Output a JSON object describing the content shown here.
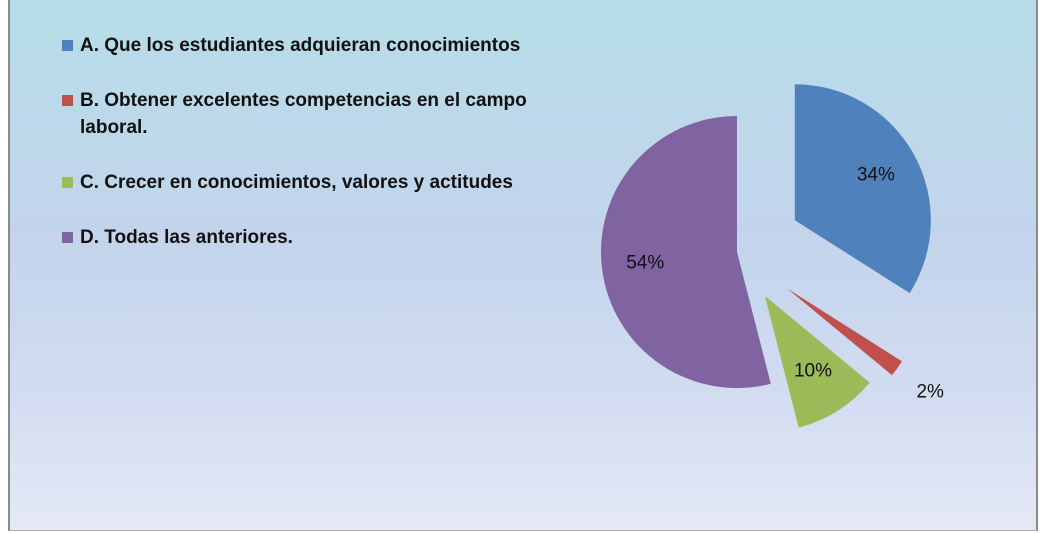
{
  "chart_data": {
    "type": "pie",
    "categories": [
      "A. Que los estudiantes adquieran conocimientos",
      "B. Obtener excelentes competencias en el campo laboral.",
      "C. Crecer en conocimientos, valores y actitudes",
      "D. Todas las anteriores."
    ],
    "values": [
      34,
      2,
      10,
      54
    ],
    "value_labels": [
      "34%",
      "2%",
      "10%",
      "54%"
    ],
    "colors": [
      "#4f81bd",
      "#c0504d",
      "#9bbb59",
      "#8064a2"
    ],
    "legend": "left"
  }
}
